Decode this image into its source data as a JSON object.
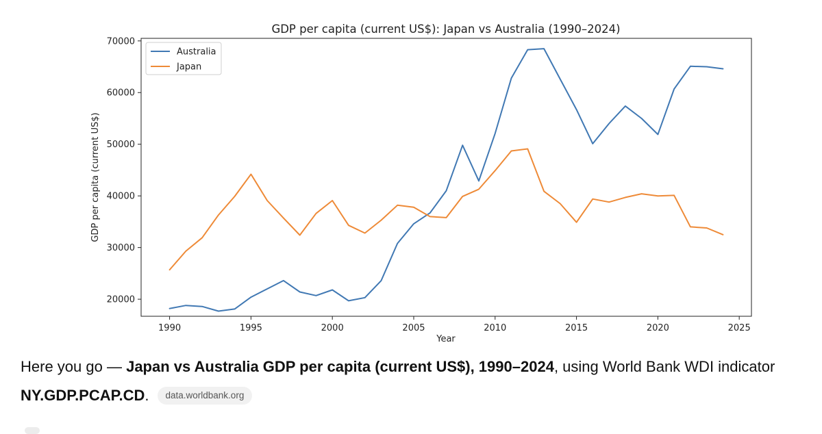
{
  "chart_data": {
    "type": "line",
    "title": "GDP per capita (current US$): Japan vs Australia (1990–2024)",
    "xlabel": "Year",
    "ylabel": "GDP per capita (current US$)",
    "xlim": [
      1988.25,
      2025.75
    ],
    "ylim": [
      16700,
      70500
    ],
    "xticks": [
      1990,
      1995,
      2000,
      2005,
      2010,
      2015,
      2020,
      2025
    ],
    "yticks": [
      20000,
      30000,
      40000,
      50000,
      60000,
      70000
    ],
    "legend_position": "top-left",
    "x": [
      1990,
      1991,
      1992,
      1993,
      1994,
      1995,
      1996,
      1997,
      1998,
      1999,
      2000,
      2001,
      2002,
      2003,
      2004,
      2005,
      2006,
      2007,
      2008,
      2009,
      2010,
      2011,
      2012,
      2013,
      2014,
      2015,
      2016,
      2017,
      2018,
      2019,
      2020,
      2021,
      2022,
      2023,
      2024
    ],
    "series": [
      {
        "name": "Australia",
        "color": "#4078b3",
        "values": [
          18200,
          18800,
          18600,
          17700,
          18100,
          20400,
          22000,
          23600,
          21400,
          20700,
          21800,
          19700,
          20300,
          23600,
          30800,
          34600,
          36700,
          41000,
          49800,
          42900,
          52100,
          62800,
          68300,
          68500,
          62600,
          56700,
          50100,
          54000,
          57400,
          55000,
          51900,
          60700,
          65100,
          65000,
          64600
        ]
      },
      {
        "name": "Japan",
        "color": "#ee8a37",
        "values": [
          25700,
          29300,
          31900,
          36300,
          39900,
          44200,
          39100,
          35700,
          32400,
          36600,
          39100,
          34300,
          32800,
          35300,
          38200,
          37800,
          36000,
          35800,
          39900,
          41300,
          44900,
          48700,
          49100,
          40900,
          38500,
          34900,
          39400,
          38800,
          39700,
          40400,
          40000,
          40100,
          34000,
          33800,
          32500
        ]
      }
    ]
  },
  "caption": {
    "intro": "Here you go — ",
    "bold_title": "Japan vs Australia GDP per capita (current US$), 1990–2024",
    "middle": ", using World Bank WDI indicator ",
    "indicator": "NY.GDP.PCAP.CD",
    "end": ".",
    "source": "data.worldbank.org"
  }
}
